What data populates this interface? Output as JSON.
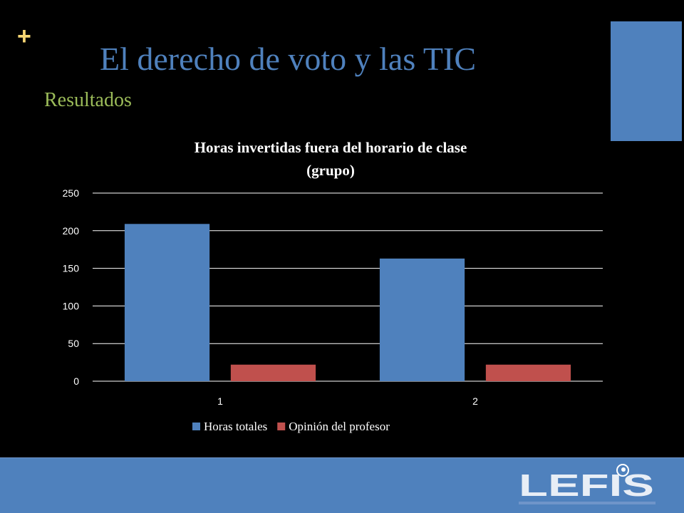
{
  "slide": {
    "plus_symbol": "+",
    "title": "El derecho de voto y las TIC",
    "subtitle": "Resultados"
  },
  "logo": {
    "text": "LEFIS"
  },
  "colors": {
    "background": "#000000",
    "plus": "#f7d774",
    "title": "#4f81bd",
    "subtitle": "#9bbb59",
    "accent_block": "#4f81bd",
    "footer_band": "#4f81bd",
    "gridline": "#ffffff",
    "chart_text": "#ffffff"
  },
  "chart_data": {
    "type": "bar",
    "title_lines": [
      "Horas invertidas fuera del horario de clase",
      "(grupo)"
    ],
    "categories": [
      "1",
      "2"
    ],
    "series": [
      {
        "name": "Horas totales",
        "values": [
          209,
          163
        ],
        "color": "#4f81bd"
      },
      {
        "name": "Opinión del profesor",
        "values": [
          22,
          22
        ],
        "color": "#c0504d"
      }
    ],
    "ylim": [
      0,
      250
    ],
    "yticks": [
      0,
      50,
      100,
      150,
      200,
      250
    ],
    "grid": true,
    "legend_position": "bottom"
  }
}
